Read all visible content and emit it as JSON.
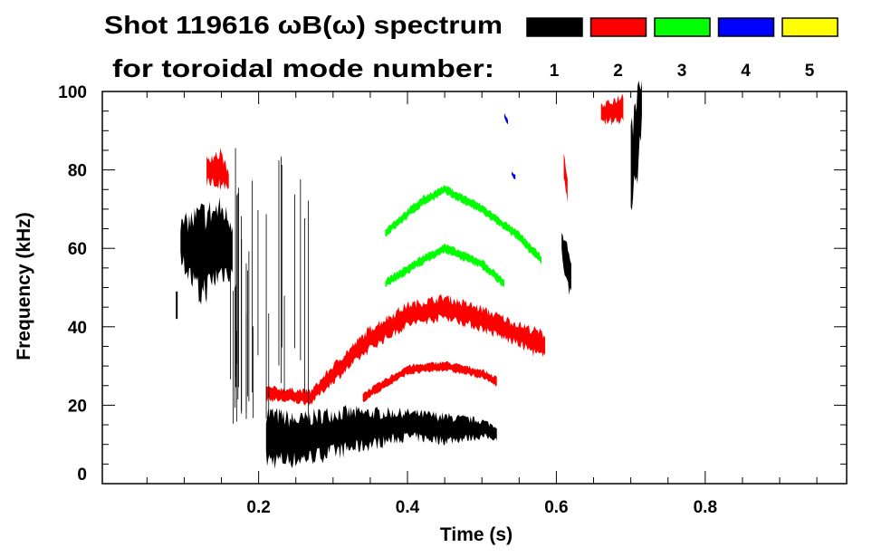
{
  "chart_data": {
    "type": "heatmap",
    "title": "Shot 119616 ωB(ω) spectrum",
    "subtitle": "for toroidal mode number:",
    "xlabel": "Time (s)",
    "ylabel": "Frequency (kHz)",
    "xlim": [
      -0.01,
      0.99
    ],
    "ylim": [
      0,
      100
    ],
    "xticks": [
      0.2,
      0.4,
      0.6,
      0.8
    ],
    "xtick_labels": [
      "0.2",
      "0.4",
      "0.6",
      "0.8"
    ],
    "yticks": [
      0,
      20,
      40,
      60,
      80,
      100
    ],
    "ytick_labels": [
      "0",
      "20",
      "40",
      "60",
      "80",
      "100"
    ],
    "legend": [
      {
        "label": "1",
        "color": "#000000"
      },
      {
        "label": "2",
        "color": "#ff0000"
      },
      {
        "label": "3",
        "color": "#00ff00"
      },
      {
        "label": "4",
        "color": "#0000ff"
      },
      {
        "label": "5",
        "color": "#ffff00"
      }
    ],
    "features": [
      {
        "mode": 1,
        "points": [
          [
            0.21,
            12,
            6
          ],
          [
            0.25,
            11,
            5
          ],
          [
            0.3,
            13,
            5
          ],
          [
            0.35,
            14,
            4
          ],
          [
            0.4,
            15,
            3
          ],
          [
            0.45,
            14,
            3
          ],
          [
            0.5,
            14,
            2
          ],
          [
            0.52,
            13,
            1.5
          ]
        ]
      },
      {
        "mode": 1,
        "points": [
          [
            0.095,
            62,
            4
          ],
          [
            0.12,
            58,
            10
          ],
          [
            0.15,
            62,
            8
          ],
          [
            0.165,
            60,
            6
          ]
        ]
      },
      {
        "mode": 1,
        "points": [
          [
            0.607,
            62,
            3
          ],
          [
            0.615,
            55,
            5
          ],
          [
            0.62,
            52,
            3
          ]
        ]
      },
      {
        "mode": 1,
        "points": [
          [
            0.7,
            80,
            8
          ],
          [
            0.71,
            90,
            10
          ],
          [
            0.715,
            98,
            4
          ]
        ]
      },
      {
        "mode": 2,
        "points": [
          [
            0.21,
            23,
            1.5
          ],
          [
            0.27,
            22,
            1.5
          ],
          [
            0.3,
            28,
            2
          ],
          [
            0.35,
            37,
            2.5
          ],
          [
            0.4,
            43,
            2.5
          ],
          [
            0.45,
            45,
            2.5
          ],
          [
            0.5,
            42,
            2.5
          ],
          [
            0.55,
            38,
            2.5
          ],
          [
            0.585,
            35,
            3
          ]
        ]
      },
      {
        "mode": 2,
        "points": [
          [
            0.34,
            22,
            1
          ],
          [
            0.4,
            29,
            1
          ],
          [
            0.45,
            30,
            1
          ],
          [
            0.5,
            28,
            1
          ],
          [
            0.52,
            26,
            1
          ]
        ]
      },
      {
        "mode": 2,
        "points": [
          [
            0.13,
            80,
            3
          ],
          [
            0.15,
            80,
            4
          ],
          [
            0.16,
            77,
            2
          ]
        ]
      },
      {
        "mode": 2,
        "points": [
          [
            0.61,
            80,
            3
          ],
          [
            0.615,
            76,
            3
          ]
        ]
      },
      {
        "mode": 2,
        "points": [
          [
            0.66,
            94,
            2
          ],
          [
            0.69,
            96,
            3
          ]
        ]
      },
      {
        "mode": 3,
        "points": [
          [
            0.37,
            64,
            1
          ],
          [
            0.42,
            72,
            1
          ],
          [
            0.45,
            75,
            1
          ],
          [
            0.5,
            70,
            1
          ],
          [
            0.55,
            63,
            1
          ],
          [
            0.58,
            57,
            1
          ]
        ]
      },
      {
        "mode": 3,
        "points": [
          [
            0.37,
            51,
            1
          ],
          [
            0.42,
            57,
            1
          ],
          [
            0.45,
            60,
            1
          ],
          [
            0.5,
            56,
            1
          ],
          [
            0.53,
            51,
            1
          ]
        ]
      },
      {
        "mode": 4,
        "points": [
          [
            0.53,
            94,
            0.6
          ],
          [
            0.535,
            92,
            0.6
          ]
        ]
      },
      {
        "mode": 4,
        "points": [
          [
            0.54,
            79,
            0.5
          ],
          [
            0.545,
            78,
            0.5
          ]
        ]
      }
    ]
  }
}
